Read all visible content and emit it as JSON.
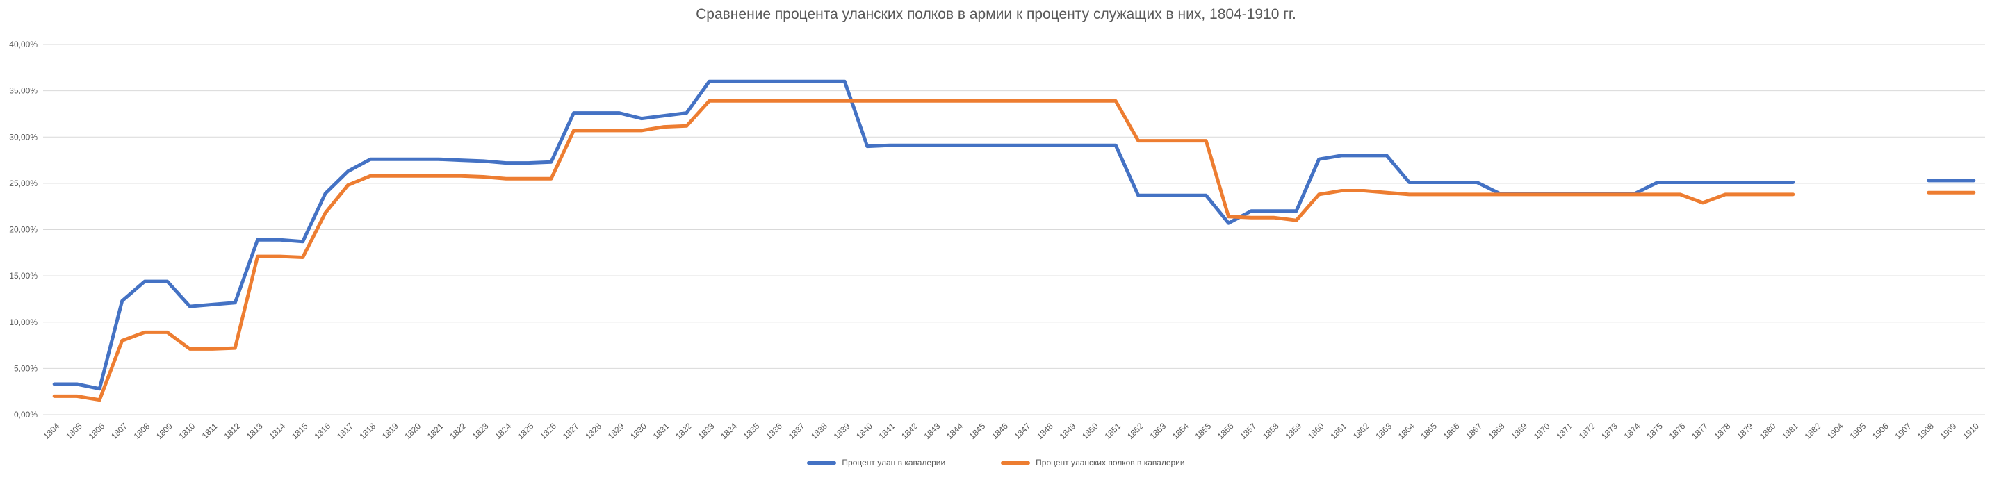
{
  "title": "Сравнение процента уланских полков в армии к проценту служащих в них, 1804-1910 гг.",
  "chart_data": {
    "type": "line",
    "title": "Сравнение процента уланских полков в армии к проценту служащих в них, 1804-1910 гг.",
    "categories": [
      "1804",
      "1805",
      "1806",
      "1807",
      "1808",
      "1809",
      "1810",
      "1811",
      "1812",
      "1813",
      "1814",
      "1815",
      "1816",
      "1817",
      "1818",
      "1819",
      "1820",
      "1821",
      "1822",
      "1823",
      "1824",
      "1825",
      "1826",
      "1827",
      "1828",
      "1829",
      "1830",
      "1831",
      "1832",
      "1833",
      "1834",
      "1835",
      "1836",
      "1837",
      "1838",
      "1839",
      "1840",
      "1841",
      "1842",
      "1843",
      "1844",
      "1845",
      "1846",
      "1847",
      "1848",
      "1849",
      "1850",
      "1851",
      "1852",
      "1853",
      "1854",
      "1855",
      "1856",
      "1857",
      "1858",
      "1859",
      "1860",
      "1861",
      "1862",
      "1863",
      "1864",
      "1865",
      "1866",
      "1867",
      "1868",
      "1869",
      "1870",
      "1871",
      "1872",
      "1873",
      "1874",
      "1875",
      "1876",
      "1877",
      "1878",
      "1879",
      "1880",
      "1881",
      "1882",
      "1904",
      "1905",
      "1906",
      "1907",
      "1908",
      "1909",
      "1910"
    ],
    "series": [
      {
        "name": "Процент улан в кавалерии",
        "color": "#4472C4",
        "values": [
          3.3,
          3.3,
          2.8,
          12.3,
          14.4,
          14.4,
          11.7,
          11.9,
          12.1,
          18.9,
          18.9,
          18.7,
          23.9,
          26.3,
          27.6,
          27.6,
          27.6,
          27.6,
          27.5,
          27.4,
          27.2,
          27.2,
          27.3,
          32.6,
          32.6,
          32.6,
          32.0,
          32.3,
          32.6,
          36.0,
          36.0,
          36.0,
          36.0,
          36.0,
          36.0,
          36.0,
          29.0,
          29.1,
          29.1,
          29.1,
          29.1,
          29.1,
          29.1,
          29.1,
          29.1,
          29.1,
          29.1,
          29.1,
          23.7,
          23.7,
          23.7,
          23.7,
          20.7,
          22.0,
          22.0,
          22.0,
          27.6,
          28.0,
          28.0,
          28.0,
          25.1,
          25.1,
          25.1,
          25.1,
          23.9,
          23.9,
          23.9,
          23.9,
          23.9,
          23.9,
          23.9,
          25.1,
          25.1,
          25.1,
          25.1,
          25.1,
          25.1,
          25.1,
          null,
          null,
          null,
          null,
          null,
          25.3,
          25.3,
          25.3
        ]
      },
      {
        "name": "Процент уланских полков в кавалерии",
        "color": "#ED7D31",
        "values": [
          2.0,
          2.0,
          1.6,
          8.0,
          8.9,
          8.9,
          7.1,
          7.1,
          7.2,
          17.1,
          17.1,
          17.0,
          21.8,
          24.8,
          25.8,
          25.8,
          25.8,
          25.8,
          25.8,
          25.7,
          25.5,
          25.5,
          25.5,
          30.7,
          30.7,
          30.7,
          30.7,
          31.1,
          31.2,
          33.9,
          33.9,
          33.9,
          33.9,
          33.9,
          33.9,
          33.9,
          33.9,
          33.9,
          33.9,
          33.9,
          33.9,
          33.9,
          33.9,
          33.9,
          33.9,
          33.9,
          33.9,
          33.9,
          29.6,
          29.6,
          29.6,
          29.6,
          21.4,
          21.3,
          21.3,
          21.0,
          23.8,
          24.2,
          24.2,
          24.0,
          23.8,
          23.8,
          23.8,
          23.8,
          23.8,
          23.8,
          23.8,
          23.8,
          23.8,
          23.8,
          23.8,
          23.8,
          23.8,
          22.9,
          23.8,
          23.8,
          23.8,
          23.8,
          null,
          null,
          null,
          null,
          null,
          24.0,
          24.0,
          24.0
        ]
      }
    ],
    "y_axis": {
      "min": 0,
      "max": 40,
      "step": 5,
      "tick_labels": [
        "0,00%",
        "5,00%",
        "10,00%",
        "15,00%",
        "20,00%",
        "25,00%",
        "30,00%",
        "35,00%",
        "40,00%"
      ]
    },
    "x_axis": {
      "label_rotation_deg": 45
    },
    "grid": true,
    "legend_position": "bottom",
    "colors": {
      "background": "#FFFFFF",
      "gridline": "#D9D9D9",
      "axis_text": "#595959",
      "title_text": "#595959"
    }
  }
}
